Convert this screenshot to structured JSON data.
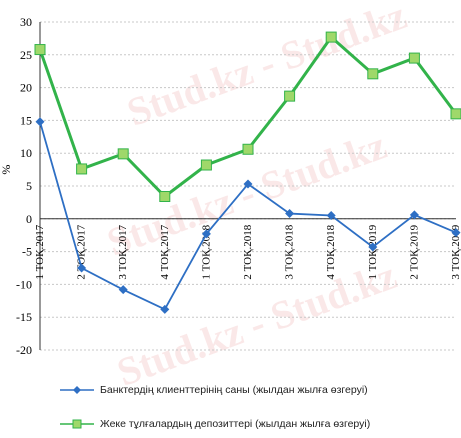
{
  "chart_data": {
    "type": "line",
    "ylabel": "%",
    "ylim": [
      -20,
      30
    ],
    "yticks": [
      -20,
      -15,
      -10,
      -5,
      0,
      5,
      10,
      15,
      20,
      25,
      30
    ],
    "grid": "horizontal dotted",
    "categories": [
      "1 ТОҚ.2017",
      "2 ТОҚ.2017",
      "3 ТОҚ.2017",
      "4 ТОҚ.2017",
      "1 ТОҚ.2018",
      "2 ТОҚ.2018",
      "3 ТОҚ.2018",
      "4 ТОҚ.2018",
      "1 ТОҚ.2019",
      "2 ТОҚ.2019",
      "3 ТОҚ.2019"
    ],
    "series": [
      {
        "name": "Банктердің клиенттерінің саны (жылдан жылға өзгеруі)",
        "color": "#2e6fc4",
        "marker": "diamond",
        "values": [
          14.8,
          -7.5,
          -10.8,
          -13.8,
          -2.3,
          5.3,
          0.8,
          0.5,
          -4.3,
          0.6,
          -2.1
        ]
      },
      {
        "name": "Жеке тұлғалардың депозиттері (жылдан жылға өзгеруі)",
        "color": "#32b34a",
        "marker": "square",
        "values": [
          25.8,
          7.6,
          9.9,
          3.4,
          8.2,
          10.6,
          18.7,
          27.7,
          22.1,
          24.5,
          16.0
        ]
      }
    ],
    "legend_position": "bottom"
  },
  "watermark_text": "Stud.kz - Stud.kz"
}
